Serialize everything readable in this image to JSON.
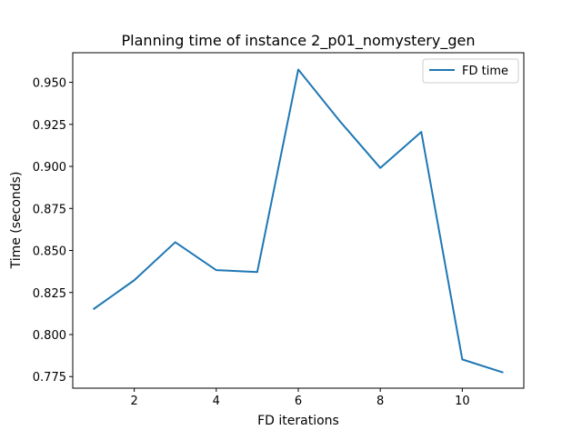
{
  "chart_data": {
    "type": "line",
    "title": "Planning time of instance 2_p01_nomystery_gen",
    "xlabel": "FD iterations",
    "ylabel": "Time (seconds)",
    "xlim": [
      0.5,
      11.5
    ],
    "ylim": [
      0.7681,
      0.9676
    ],
    "x_ticks": [
      2,
      4,
      6,
      8,
      10
    ],
    "y_ticks": [
      0.775,
      0.8,
      0.825,
      0.85,
      0.875,
      0.9,
      0.925,
      0.95
    ],
    "x_tick_labels": [
      "2",
      "4",
      "6",
      "8",
      "10"
    ],
    "y_tick_labels": [
      "0.775",
      "0.800",
      "0.825",
      "0.850",
      "0.875",
      "0.900",
      "0.925",
      "0.950"
    ],
    "grid": false,
    "legend_position": "top-right",
    "series": [
      {
        "name": "FD time",
        "color": "#1f77b4",
        "x": [
          1,
          2,
          3,
          4,
          5,
          6,
          7,
          8,
          9,
          10,
          11
        ],
        "y": [
          0.815,
          0.8323,
          0.8549,
          0.8383,
          0.8372,
          0.9576,
          0.9273,
          0.8991,
          0.9205,
          0.7852,
          0.7774
        ]
      }
    ]
  }
}
